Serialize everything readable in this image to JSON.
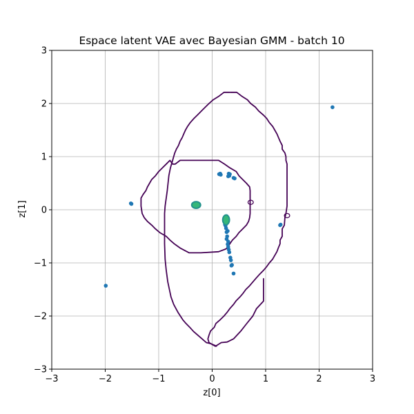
{
  "chart_data": {
    "type": "scatter",
    "title": "Espace latent VAE avec Bayesian GMM - batch 10",
    "xlabel": "z[0]",
    "ylabel": "z[1]",
    "xlim": [
      -3,
      3
    ],
    "ylim": [
      -3,
      3
    ],
    "grid": true,
    "x_ticks": [
      -3,
      -2,
      -1,
      0,
      1,
      2,
      3
    ],
    "y_ticks": [
      -3,
      -2,
      -1,
      0,
      1,
      2,
      3
    ],
    "x_tick_labels": [
      "−3",
      "−2",
      "−1",
      "0",
      "1",
      "2",
      "3"
    ],
    "y_tick_labels": [
      "−3",
      "−2",
      "−1",
      "0",
      "1",
      "2",
      "3"
    ],
    "colors": {
      "points": "#1f77b4",
      "contour": "#440154",
      "density_high": "#35b779",
      "density_mid": "#21918c",
      "grid": "#b0b0b0"
    },
    "points": [
      [
        2.25,
        1.93
      ],
      [
        -1.52,
        0.12
      ],
      [
        -1.51,
        0.11
      ],
      [
        -1.99,
        -1.43
      ],
      [
        1.28,
        -0.28
      ],
      [
        1.27,
        -0.29
      ],
      [
        0.13,
        0.67
      ],
      [
        0.16,
        0.66
      ],
      [
        0.15,
        0.68
      ],
      [
        0.31,
        0.68
      ],
      [
        0.32,
        0.64
      ],
      [
        0.3,
        0.63
      ],
      [
        0.33,
        0.67
      ],
      [
        0.4,
        0.6
      ],
      [
        0.42,
        0.59
      ],
      [
        -0.33,
        0.09
      ],
      [
        -0.3,
        0.08
      ],
      [
        -0.27,
        0.1
      ],
      [
        -0.32,
        0.11
      ],
      [
        -0.28,
        0.07
      ],
      [
        -0.3,
        0.11
      ],
      [
        0.24,
        -0.15
      ],
      [
        0.27,
        -0.12
      ],
      [
        0.25,
        -0.2
      ],
      [
        0.26,
        -0.25
      ],
      [
        0.25,
        -0.3
      ],
      [
        0.26,
        -0.35
      ],
      [
        0.27,
        -0.42
      ],
      [
        0.28,
        -0.5
      ],
      [
        0.27,
        -0.55
      ],
      [
        0.3,
        -0.6
      ],
      [
        0.29,
        -0.65
      ],
      [
        0.3,
        -0.7
      ],
      [
        0.31,
        -0.75
      ],
      [
        0.32,
        -0.8
      ],
      [
        0.34,
        -0.9
      ],
      [
        0.35,
        -0.95
      ],
      [
        0.36,
        -1.05
      ],
      [
        0.37,
        -1.04
      ],
      [
        0.4,
        -1.2
      ],
      [
        0.23,
        -0.2
      ],
      [
        0.28,
        -0.18
      ],
      [
        0.24,
        -0.28
      ],
      [
        0.29,
        -0.4
      ]
    ],
    "density_peaks": [
      {
        "x": -0.3,
        "y": 0.09,
        "rx": 0.07,
        "ry": 0.05,
        "level": "high"
      },
      {
        "x": 0.26,
        "y": -0.19,
        "rx": 0.05,
        "ry": 0.08,
        "level": "high"
      }
    ],
    "contours": [
      {
        "name": "component-outer",
        "points": [
          [
            0.33,
            2.21
          ],
          [
            0.46,
            2.21
          ],
          [
            0.55,
            2.14
          ],
          [
            0.66,
            2.07
          ],
          [
            0.72,
            2.0
          ],
          [
            0.81,
            1.93
          ],
          [
            0.87,
            1.86
          ],
          [
            0.96,
            1.78
          ],
          [
            1.02,
            1.72
          ],
          [
            1.07,
            1.64
          ],
          [
            1.13,
            1.57
          ],
          [
            1.17,
            1.5
          ],
          [
            1.21,
            1.43
          ],
          [
            1.24,
            1.36
          ],
          [
            1.27,
            1.29
          ],
          [
            1.31,
            1.21
          ],
          [
            1.31,
            1.14
          ],
          [
            1.36,
            1.07
          ],
          [
            1.38,
            1.0
          ],
          [
            1.38,
            0.93
          ],
          [
            1.4,
            0.86
          ],
          [
            1.4,
            0.64
          ],
          [
            1.4,
            0.36
          ],
          [
            1.4,
            0.07
          ],
          [
            1.38,
            -0.07
          ],
          [
            1.36,
            -0.15
          ],
          [
            1.35,
            -0.29
          ],
          [
            1.31,
            -0.36
          ],
          [
            1.31,
            -0.5
          ],
          [
            1.27,
            -0.57
          ],
          [
            1.27,
            -0.64
          ],
          [
            1.24,
            -0.71
          ],
          [
            1.21,
            -0.79
          ],
          [
            1.17,
            -0.86
          ],
          [
            1.13,
            -0.93
          ],
          [
            1.07,
            -1.0
          ],
          [
            1.02,
            -1.07
          ],
          [
            0.96,
            -1.14
          ],
          [
            0.89,
            -1.21
          ],
          [
            0.82,
            -1.29
          ],
          [
            0.76,
            -1.36
          ],
          [
            0.7,
            -1.43
          ],
          [
            0.63,
            -1.5
          ],
          [
            0.58,
            -1.57
          ],
          [
            0.52,
            -1.64
          ],
          [
            0.45,
            -1.71
          ],
          [
            0.4,
            -1.78
          ],
          [
            0.33,
            -1.86
          ],
          [
            0.28,
            -1.93
          ],
          [
            0.22,
            -2.0
          ],
          [
            0.15,
            -2.07
          ],
          [
            0.07,
            -2.14
          ],
          [
            0.04,
            -2.21
          ],
          [
            -0.03,
            -2.28
          ],
          [
            -0.06,
            -2.36
          ],
          [
            -0.08,
            -2.43
          ],
          [
            -0.06,
            -2.5
          ],
          [
            0.06,
            -2.57
          ],
          [
            0.17,
            -2.5
          ],
          [
            0.28,
            -2.49
          ],
          [
            0.4,
            -2.43
          ],
          [
            0.53,
            -2.29
          ],
          [
            0.64,
            -2.15
          ],
          [
            0.76,
            -2.0
          ],
          [
            0.83,
            -1.86
          ],
          [
            0.96,
            -1.72
          ],
          [
            0.96,
            -1.6
          ],
          [
            0.96,
            -1.43
          ],
          [
            0.96,
            -1.29
          ]
        ],
        "closed": false
      },
      {
        "name": "component-outer-left",
        "points": [
          [
            0.33,
            2.21
          ],
          [
            0.22,
            2.21
          ],
          [
            0.13,
            2.14
          ],
          [
            0.02,
            2.07
          ],
          [
            -0.06,
            2.0
          ],
          [
            -0.13,
            1.93
          ],
          [
            -0.2,
            1.86
          ],
          [
            -0.27,
            1.79
          ],
          [
            -0.34,
            1.72
          ],
          [
            -0.41,
            1.64
          ],
          [
            -0.46,
            1.57
          ],
          [
            -0.5,
            1.5
          ],
          [
            -0.53,
            1.43
          ],
          [
            -0.56,
            1.36
          ],
          [
            -0.6,
            1.29
          ],
          [
            -0.63,
            1.21
          ],
          [
            -0.67,
            1.14
          ],
          [
            -0.7,
            1.07
          ],
          [
            -0.72,
            1.0
          ],
          [
            -0.74,
            0.93
          ],
          [
            -0.76,
            0.86
          ],
          [
            -0.78,
            0.79
          ],
          [
            -0.81,
            0.64
          ],
          [
            -0.84,
            0.36
          ],
          [
            -0.88,
            0.07
          ],
          [
            -0.89,
            -0.07
          ],
          [
            -0.89,
            -0.36
          ],
          [
            -0.89,
            -0.64
          ],
          [
            -0.88,
            -0.93
          ],
          [
            -0.86,
            -1.14
          ],
          [
            -0.83,
            -1.36
          ],
          [
            -0.8,
            -1.5
          ],
          [
            -0.77,
            -1.64
          ],
          [
            -0.72,
            -1.78
          ],
          [
            -0.64,
            -1.93
          ],
          [
            -0.55,
            -2.07
          ],
          [
            -0.49,
            -2.14
          ],
          [
            -0.42,
            -2.21
          ],
          [
            -0.35,
            -2.29
          ],
          [
            -0.27,
            -2.36
          ],
          [
            -0.19,
            -2.43
          ],
          [
            -0.11,
            -2.5
          ],
          [
            -0.03,
            -2.52
          ],
          [
            0.09,
            -2.57
          ]
        ],
        "closed": false
      },
      {
        "name": "component-middle",
        "points": [
          [
            -0.26,
            0.93
          ],
          [
            0.12,
            0.93
          ],
          [
            0.23,
            0.86
          ],
          [
            0.33,
            0.79
          ],
          [
            0.45,
            0.72
          ],
          [
            0.5,
            0.64
          ],
          [
            0.57,
            0.57
          ],
          [
            0.64,
            0.5
          ],
          [
            0.7,
            0.43
          ],
          [
            0.71,
            0.36
          ],
          [
            0.71,
            0.14
          ],
          [
            0.71,
            -0.07
          ],
          [
            0.7,
            -0.15
          ],
          [
            0.68,
            -0.22
          ],
          [
            0.64,
            -0.29
          ],
          [
            0.57,
            -0.36
          ],
          [
            0.5,
            -0.43
          ],
          [
            0.45,
            -0.5
          ],
          [
            0.38,
            -0.57
          ],
          [
            0.33,
            -0.64
          ],
          [
            0.29,
            -0.71
          ],
          [
            0.25,
            -0.74
          ],
          [
            0.12,
            -0.79
          ],
          [
            -0.21,
            -0.81
          ],
          [
            -0.43,
            -0.81
          ],
          [
            -0.6,
            -0.72
          ],
          [
            -0.71,
            -0.64
          ],
          [
            -0.79,
            -0.57
          ],
          [
            -0.86,
            -0.5
          ],
          [
            -0.98,
            -0.43
          ],
          [
            -1.06,
            -0.36
          ],
          [
            -1.13,
            -0.29
          ],
          [
            -1.21,
            -0.22
          ],
          [
            -1.27,
            -0.15
          ],
          [
            -1.31,
            -0.07
          ],
          [
            -1.33,
            0.07
          ],
          [
            -1.33,
            0.22
          ],
          [
            -1.29,
            0.29
          ],
          [
            -1.24,
            0.36
          ],
          [
            -1.21,
            0.43
          ],
          [
            -1.17,
            0.5
          ],
          [
            -1.13,
            0.57
          ],
          [
            -1.06,
            0.64
          ],
          [
            -1.0,
            0.72
          ],
          [
            -0.93,
            0.79
          ],
          [
            -0.86,
            0.86
          ],
          [
            -0.79,
            0.93
          ],
          [
            -0.74,
            0.86
          ],
          [
            -0.69,
            0.86
          ],
          [
            -0.6,
            0.93
          ],
          [
            -0.26,
            0.93
          ]
        ],
        "closed": true
      }
    ],
    "small_loops": [
      {
        "x": 0.72,
        "y": 0.14,
        "rx": 0.05,
        "ry": 0.04
      },
      {
        "x": 1.4,
        "y": -0.11,
        "rx": 0.05,
        "ry": 0.04
      }
    ]
  }
}
